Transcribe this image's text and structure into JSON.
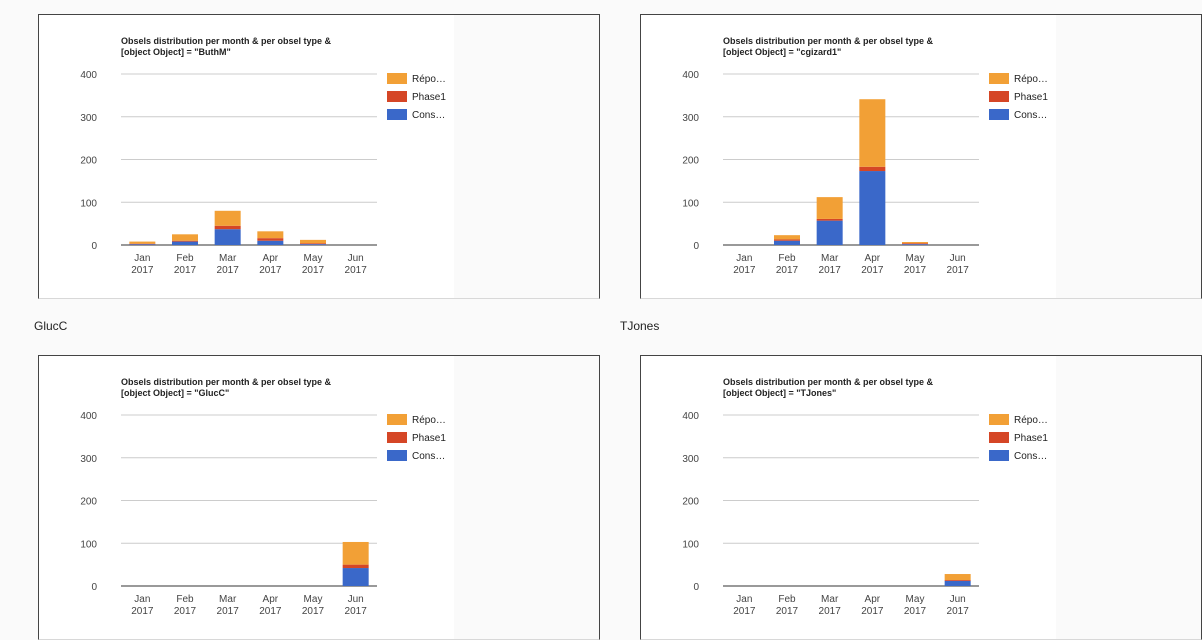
{
  "colors": {
    "reponse": "#f2a036",
    "phase1": "#d54626",
    "cons": "#3a68c9"
  },
  "user_labels": [
    "GlucC",
    "TJones"
  ],
  "chart_data": [
    {
      "type": "bar",
      "stacked": true,
      "title_line1": "Obsels distribution per month & per obsel type &",
      "title_line2": "[object Object] = \"ButhM\"",
      "categories": [
        [
          "Jan",
          "2017"
        ],
        [
          "Feb",
          "2017"
        ],
        [
          "Mar",
          "2017"
        ],
        [
          "Apr",
          "2017"
        ],
        [
          "May",
          "2017"
        ],
        [
          "Jun",
          "2017"
        ]
      ],
      "yticks": [
        "400",
        "300",
        "200",
        "100",
        "0"
      ],
      "ylim": [
        0,
        400
      ],
      "legend_position": "right",
      "series": [
        {
          "name": "Cons…",
          "color_key": "cons",
          "values": [
            2,
            8,
            37,
            10,
            2,
            0
          ]
        },
        {
          "name": "Phase1",
          "color_key": "phase1",
          "values": [
            1,
            2,
            8,
            6,
            2,
            0
          ]
        },
        {
          "name": "Répo…",
          "color_key": "reponse",
          "values": [
            5,
            15,
            35,
            16,
            8,
            0
          ]
        }
      ]
    },
    {
      "type": "bar",
      "stacked": true,
      "title_line1": "Obsels distribution per month & per obsel type &",
      "title_line2": "[object Object] = \"cgizard1\"",
      "categories": [
        [
          "Jan",
          "2017"
        ],
        [
          "Feb",
          "2017"
        ],
        [
          "Mar",
          "2017"
        ],
        [
          "Apr",
          "2017"
        ],
        [
          "May",
          "2017"
        ],
        [
          "Jun",
          "2017"
        ]
      ],
      "yticks": [
        "400",
        "300",
        "200",
        "100",
        "0"
      ],
      "ylim": [
        0,
        400
      ],
      "legend_position": "right",
      "series": [
        {
          "name": "Cons…",
          "color_key": "cons",
          "values": [
            0,
            10,
            57,
            173,
            2,
            0
          ]
        },
        {
          "name": "Phase1",
          "color_key": "phase1",
          "values": [
            0,
            3,
            4,
            10,
            2,
            0
          ]
        },
        {
          "name": "Répo…",
          "color_key": "reponse",
          "values": [
            0,
            10,
            51,
            158,
            3,
            0
          ]
        }
      ]
    },
    {
      "type": "bar",
      "stacked": true,
      "title_line1": "Obsels distribution per month & per obsel type &",
      "title_line2": "[object Object] = \"GlucC\"",
      "categories": [
        [
          "Jan",
          "2017"
        ],
        [
          "Feb",
          "2017"
        ],
        [
          "Mar",
          "2017"
        ],
        [
          "Apr",
          "2017"
        ],
        [
          "May",
          "2017"
        ],
        [
          "Jun",
          "2017"
        ]
      ],
      "yticks": [
        "400",
        "300",
        "200",
        "100",
        "0"
      ],
      "ylim": [
        0,
        400
      ],
      "legend_position": "right",
      "series": [
        {
          "name": "Cons…",
          "color_key": "cons",
          "values": [
            0,
            0,
            0,
            0,
            0,
            42
          ]
        },
        {
          "name": "Phase1",
          "color_key": "phase1",
          "values": [
            0,
            0,
            0,
            0,
            0,
            8
          ]
        },
        {
          "name": "Répo…",
          "color_key": "reponse",
          "values": [
            0,
            0,
            0,
            0,
            0,
            53
          ]
        }
      ]
    },
    {
      "type": "bar",
      "stacked": true,
      "title_line1": "Obsels distribution per month & per obsel type &",
      "title_line2": "[object Object] = \"TJones\"",
      "categories": [
        [
          "Jan",
          "2017"
        ],
        [
          "Feb",
          "2017"
        ],
        [
          "Mar",
          "2017"
        ],
        [
          "Apr",
          "2017"
        ],
        [
          "May",
          "2017"
        ],
        [
          "Jun",
          "2017"
        ]
      ],
      "yticks": [
        "400",
        "300",
        "200",
        "100",
        "0"
      ],
      "ylim": [
        0,
        400
      ],
      "legend_position": "right",
      "series": [
        {
          "name": "Cons…",
          "color_key": "cons",
          "values": [
            0,
            0,
            0,
            0,
            0,
            12
          ]
        },
        {
          "name": "Phase1",
          "color_key": "phase1",
          "values": [
            0,
            0,
            0,
            0,
            0,
            2
          ]
        },
        {
          "name": "Répo…",
          "color_key": "reponse",
          "values": [
            0,
            0,
            0,
            0,
            0,
            14
          ]
        }
      ]
    }
  ]
}
